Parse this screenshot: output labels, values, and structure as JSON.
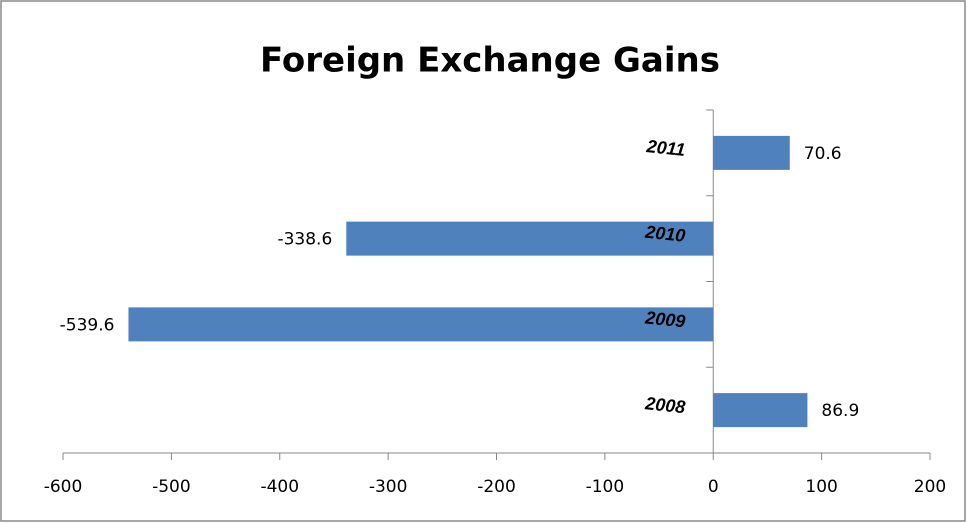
{
  "chart_data": {
    "type": "barh",
    "title": "Foreign Exchange Gains",
    "categories": [
      "2008",
      "2009",
      "2010",
      "2011"
    ],
    "values": [
      86.9,
      -539.6,
      -338.6,
      70.6
    ],
    "color": "#4f81bd",
    "xlim": [
      -600,
      200
    ],
    "xticks": [
      -600,
      -500,
      -400,
      -300,
      -200,
      -100,
      0,
      100,
      200
    ]
  }
}
